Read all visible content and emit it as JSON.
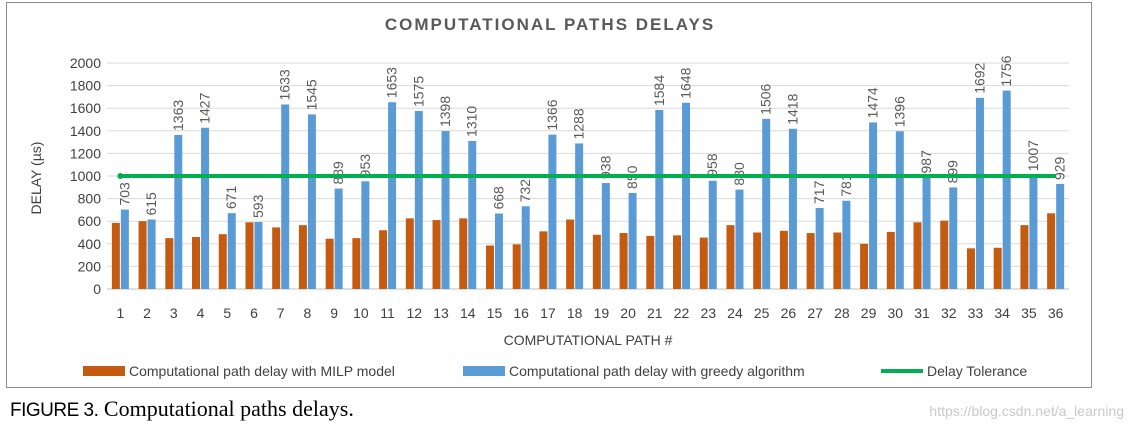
{
  "chart_data": {
    "type": "bar",
    "title": "COMPUTATIONAL PATHS DELAYS",
    "xlabel": "COMPUTATIONAL PATH #",
    "ylabel": "DELAY (µs)",
    "ylim": [
      0,
      2000
    ],
    "yticks": [
      0,
      200,
      400,
      600,
      800,
      1000,
      1200,
      1400,
      1600,
      1800,
      2000
    ],
    "categories": [
      "1",
      "2",
      "3",
      "4",
      "5",
      "6",
      "7",
      "8",
      "9",
      "10",
      "11",
      "12",
      "13",
      "14",
      "15",
      "16",
      "17",
      "18",
      "19",
      "20",
      "21",
      "22",
      "23",
      "24",
      "25",
      "26",
      "27",
      "28",
      "29",
      "30",
      "31",
      "32",
      "33",
      "34",
      "35",
      "36"
    ],
    "series": [
      {
        "name": "Computational path delay with MILP model",
        "color": "#c55a11",
        "values": [
          585,
          600,
          450,
          460,
          485,
          590,
          545,
          565,
          445,
          450,
          520,
          625,
          610,
          625,
          385,
          395,
          510,
          615,
          480,
          495,
          470,
          475,
          455,
          565,
          500,
          515,
          495,
          500,
          400,
          505,
          590,
          605,
          360,
          365,
          565,
          670
        ]
      },
      {
        "name": "Computational path delay with greedy algorithm",
        "color": "#5b9bd5",
        "values": [
          703,
          615,
          1363,
          1427,
          671,
          593,
          1633,
          1545,
          889,
          953,
          1653,
          1575,
          1398,
          1310,
          668,
          732,
          1366,
          1288,
          938,
          850,
          1584,
          1648,
          958,
          880,
          1506,
          1418,
          717,
          781,
          1474,
          1396,
          987,
          899,
          1692,
          1756,
          1007,
          929
        ],
        "labels": [
          "703",
          "615",
          "1363",
          "1427",
          "671",
          "593",
          "1633",
          "1545",
          "889",
          "953",
          "1653",
          "1575",
          "1398",
          "1310",
          "668",
          "732",
          "1366",
          "1288",
          "938",
          "850",
          "1584",
          "1648",
          "958",
          "880",
          "1506",
          "1418",
          "717",
          "781",
          "1474",
          "1396",
          "987",
          "899",
          "1692",
          "1756",
          "1007",
          "929"
        ]
      }
    ],
    "threshold": {
      "name": "Delay Tolerance",
      "value": 1000,
      "color": "#00b050"
    },
    "legend": "bottom",
    "grid": true
  },
  "caption": {
    "figure": "FIGURE 3.",
    "text": "Computational paths delays."
  },
  "watermark": "https://blog.csdn.net/a_learning"
}
